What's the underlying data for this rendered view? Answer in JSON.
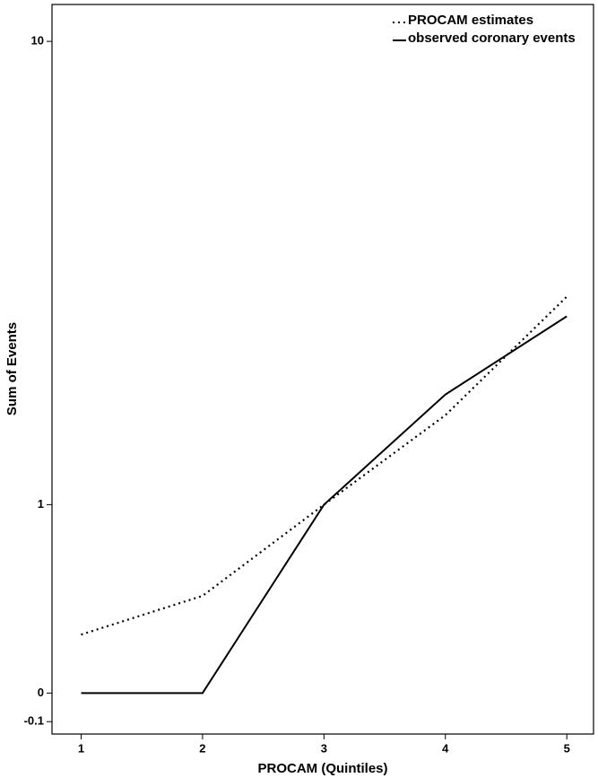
{
  "chart_data": {
    "type": "line",
    "x_label": "PROCAM (Quintiles)",
    "y_label": "Sum of Events",
    "x": [
      1,
      2,
      3,
      4,
      5
    ],
    "series": [
      {
        "name": "PROCAM estimates",
        "color": "#000000",
        "dash": "dotted",
        "values": [
          0.24,
          0.43,
          1.0,
          1.78,
          3.3
        ]
      },
      {
        "name": "observed coronary events",
        "color": "#000000",
        "dash": "solid",
        "values": [
          0.0,
          0.0,
          1.0,
          2.0,
          3.0
        ]
      }
    ],
    "xlim": [
      0.76,
      5.22
    ],
    "xticks": [
      1,
      2,
      3,
      4,
      5
    ],
    "ylim": [
      -0.14,
      11.6
    ],
    "yticks": [
      -0.1,
      0,
      1,
      10
    ],
    "yscale": "log1p",
    "legend": "upper right"
  }
}
